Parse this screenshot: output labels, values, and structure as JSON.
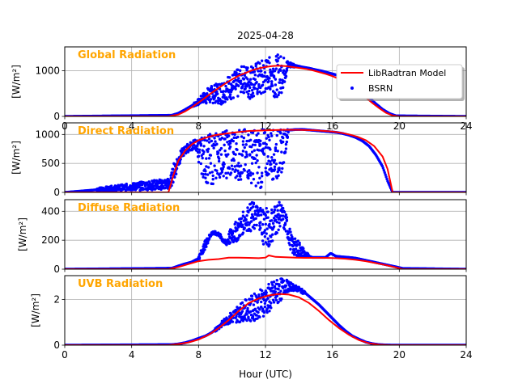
{
  "figure": {
    "title": "2025-04-28",
    "xlabel": "Hour (UTC)",
    "legend": {
      "model_label": "LibRadtran Model",
      "obs_label": "BSRN",
      "placement": "upper-right of first panel"
    },
    "colors": {
      "model": "#ff0000",
      "obs": "#0000ff",
      "panel_label": "#ffa500",
      "grid": "#b0b0b0"
    }
  },
  "chart_data": [
    {
      "type": "line+scatter",
      "panel_label": "Global Radiation",
      "ylabel": "[W/m²]",
      "xlim": [
        0,
        24
      ],
      "ylim": [
        0,
        1520
      ],
      "x_ticks": [
        0,
        4,
        8,
        12,
        16,
        20,
        24
      ],
      "x_tick_labels": [
        "0",
        "4",
        "8",
        "12",
        "16",
        "20",
        "24"
      ],
      "y_ticks": [
        0,
        1000
      ],
      "y_tick_labels": [
        "0",
        "1000"
      ],
      "grid": true,
      "series": [
        {
          "name": "LibRadtran Model",
          "kind": "line",
          "x": [
            0,
            6.2,
            6.8,
            7.2,
            7.6,
            8,
            8.4,
            8.8,
            9.2,
            9.6,
            10,
            10.4,
            10.8,
            11.2,
            11.6,
            12,
            12.4,
            12.8,
            13.2,
            13.6,
            14,
            14.4,
            14.8,
            15.2,
            15.6,
            16,
            16.4,
            16.8,
            17.2,
            17.6,
            18,
            18.4,
            18.8,
            19.2,
            19.6,
            20,
            24
          ],
          "y": [
            0,
            0,
            40,
            110,
            200,
            300,
            410,
            520,
            620,
            720,
            810,
            890,
            950,
            1010,
            1050,
            1080,
            1100,
            1110,
            1100,
            1080,
            1060,
            1040,
            1010,
            970,
            930,
            880,
            820,
            740,
            640,
            530,
            410,
            290,
            180,
            80,
            20,
            0,
            0
          ]
        },
        {
          "name": "BSRN",
          "kind": "scatter",
          "x": [
            0,
            6.4,
            6.8,
            7.2,
            7.6,
            8,
            8.3,
            8.6,
            9,
            9.4,
            9.8,
            10.2,
            10.6,
            11,
            11.4,
            11.8,
            12.2,
            12.6,
            13,
            13.4,
            13.8,
            14.2,
            14.6,
            15,
            15.4,
            15.8,
            16.2,
            16.6,
            17,
            17.4,
            17.8,
            18.2,
            18.6,
            19,
            19.4,
            19.8,
            24
          ],
          "y": [
            0,
            20,
            70,
            150,
            250,
            330,
            400,
            380,
            480,
            650,
            700,
            800,
            820,
            950,
            1000,
            1050,
            1120,
            1150,
            1150,
            1120,
            1100,
            1080,
            1060,
            1020,
            990,
            950,
            910,
            860,
            760,
            650,
            530,
            400,
            270,
            150,
            60,
            10,
            0
          ],
          "y_scatter_low": [
            0,
            20,
            60,
            130,
            200,
            250,
            300,
            250,
            300,
            250,
            400,
            300,
            550,
            350,
            450,
            380,
            600,
            400,
            520,
            1060,
            1080,
            1060,
            1040,
            1010,
            980,
            940,
            900,
            850,
            760,
            650,
            530,
            400,
            270,
            150,
            60,
            10,
            0
          ],
          "y_scatter_high": [
            0,
            30,
            80,
            170,
            270,
            380,
            520,
            650,
            700,
            800,
            900,
            1000,
            1100,
            1150,
            1180,
            1250,
            1300,
            1350,
            1350,
            1200,
            1150,
            1100,
            1070,
            1030,
            1000,
            960,
            920,
            870,
            770,
            660,
            540,
            410,
            280,
            160,
            70,
            15,
            0
          ]
        }
      ]
    },
    {
      "type": "line+scatter",
      "panel_label": "Direct Radiation",
      "ylabel": "[W/m²]",
      "xlim": [
        0,
        24
      ],
      "ylim": [
        0,
        1200
      ],
      "x_ticks": [
        0,
        4,
        8,
        12,
        16,
        20,
        24
      ],
      "x_tick_labels": [
        "",
        "",
        "",
        "",
        "",
        "",
        ""
      ],
      "y_ticks": [
        0,
        500,
        1000
      ],
      "y_tick_labels": [
        "0",
        "500",
        "1000"
      ],
      "grid": true,
      "series": [
        {
          "name": "LibRadtran Model",
          "kind": "line",
          "x": [
            0,
            6.2,
            6.5,
            6.8,
            7.2,
            7.6,
            8,
            8.5,
            9,
            10,
            11,
            12,
            13,
            14,
            15,
            16,
            16.5,
            17,
            17.5,
            18,
            18.5,
            19,
            19.3,
            19.6,
            24
          ],
          "y": [
            0,
            0,
            300,
            550,
            720,
            830,
            900,
            950,
            990,
            1030,
            1060,
            1070,
            1080,
            1080,
            1070,
            1050,
            1030,
            1000,
            960,
            900,
            800,
            620,
            400,
            0,
            0
          ]
        },
        {
          "name": "BSRN",
          "kind": "scatter",
          "x": [
            0,
            6.3,
            6.6,
            7,
            7.4,
            7.8,
            8.2,
            8.6,
            9,
            9.4,
            9.8,
            10.2,
            10.6,
            11,
            11.4,
            11.8,
            12.2,
            12.6,
            13,
            13.4,
            13.8,
            14.2,
            14.6,
            15,
            15.4,
            15.8,
            16.2,
            16.6,
            17,
            17.4,
            17.8,
            18.2,
            18.6,
            19,
            19.3,
            19.6,
            24
          ],
          "y": [
            0,
            200,
            500,
            700,
            800,
            880,
            850,
            600,
            750,
            900,
            1000,
            950,
            1050,
            900,
            1000,
            950,
            800,
            1000,
            1050,
            1080,
            1090,
            1090,
            1080,
            1070,
            1060,
            1050,
            1040,
            1020,
            990,
            950,
            890,
            800,
            650,
            450,
            200,
            0,
            0
          ],
          "y_scatter_low": [
            0,
            50,
            250,
            600,
            700,
            750,
            300,
            100,
            150,
            300,
            200,
            250,
            150,
            200,
            100,
            50,
            300,
            150,
            350,
            1050,
            1070,
            1080,
            1070,
            1060,
            1050,
            1040,
            1030,
            1010,
            980,
            940,
            880,
            790,
            640,
            440,
            190,
            0,
            0
          ],
          "y_scatter_high": [
            0,
            250,
            600,
            750,
            850,
            920,
            950,
            1000,
            1050,
            1080,
            1080,
            1090,
            1100,
            1100,
            1100,
            1100,
            1090,
            1090,
            1090,
            1100,
            1100,
            1095,
            1085,
            1075,
            1065,
            1055,
            1045,
            1025,
            995,
            955,
            895,
            805,
            655,
            455,
            205,
            0,
            0
          ]
        }
      ]
    },
    {
      "type": "line+scatter",
      "panel_label": "Diffuse Radiation",
      "ylabel": "[W/m²]",
      "xlim": [
        0,
        24
      ],
      "ylim": [
        0,
        480
      ],
      "x_ticks": [
        0,
        4,
        8,
        12,
        16,
        20,
        24
      ],
      "x_tick_labels": [
        "",
        "",
        "",
        "",
        "",
        "",
        ""
      ],
      "y_ticks": [
        0,
        200,
        400
      ],
      "y_tick_labels": [
        "0",
        "200",
        "400"
      ],
      "grid": true,
      "series": [
        {
          "name": "LibRadtran Model",
          "kind": "line",
          "x": [
            0,
            6.2,
            6.8,
            7.4,
            8,
            8.6,
            9.2,
            9.8,
            10.4,
            11,
            11.6,
            12,
            12.2,
            12.6,
            13.2,
            13.8,
            14.4,
            15,
            15.6,
            16.2,
            16.8,
            17.4,
            18,
            18.6,
            19.2,
            19.8,
            20.2,
            24
          ],
          "y": [
            0,
            0,
            15,
            35,
            55,
            65,
            70,
            80,
            80,
            78,
            76,
            80,
            95,
            85,
            82,
            80,
            78,
            78,
            78,
            76,
            72,
            65,
            55,
            42,
            28,
            12,
            0,
            0
          ]
        },
        {
          "name": "BSRN",
          "kind": "scatter",
          "x": [
            0,
            6.4,
            6.8,
            7.2,
            7.6,
            8,
            8.4,
            8.8,
            9.2,
            9.6,
            10,
            10.4,
            10.8,
            11.2,
            11.6,
            11.9,
            12.2,
            12.6,
            12.9,
            13.2,
            13.6,
            14,
            14.4,
            14.8,
            15.2,
            15.6,
            15.9,
            16.2,
            16.6,
            17,
            17.4,
            17.8,
            18.2,
            18.6,
            19,
            19.4,
            19.8,
            20.2,
            24
          ],
          "y": [
            0,
            5,
            20,
            35,
            45,
            60,
            150,
            250,
            240,
            170,
            180,
            300,
            280,
            380,
            350,
            420,
            250,
            350,
            380,
            300,
            150,
            180,
            100,
            80,
            80,
            80,
            110,
            90,
            85,
            80,
            75,
            65,
            55,
            45,
            35,
            25,
            15,
            5,
            0
          ],
          "y_scatter_low": [
            0,
            5,
            20,
            35,
            45,
            60,
            140,
            240,
            230,
            160,
            170,
            200,
            270,
            250,
            300,
            150,
            150,
            220,
            300,
            250,
            100,
            80,
            80,
            78,
            78,
            78,
            100,
            85,
            80,
            78,
            72,
            62,
            52,
            42,
            32,
            22,
            12,
            3,
            0
          ],
          "y_scatter_high": [
            0,
            8,
            25,
            40,
            55,
            90,
            200,
            265,
            255,
            200,
            300,
            350,
            420,
            470,
            440,
            460,
            400,
            470,
            460,
            400,
            220,
            200,
            120,
            85,
            85,
            85,
            120,
            95,
            90,
            85,
            80,
            70,
            60,
            50,
            40,
            30,
            20,
            8,
            0
          ]
        }
      ]
    },
    {
      "type": "line+scatter",
      "panel_label": "UVB Radiation",
      "ylabel": "[W/m²]",
      "xlim": [
        0,
        24
      ],
      "ylim": [
        0,
        3.05
      ],
      "x_ticks": [
        0,
        4,
        8,
        12,
        16,
        20,
        24
      ],
      "x_tick_labels": [
        "0",
        "4",
        "8",
        "12",
        "16",
        "20",
        "24"
      ],
      "y_ticks": [
        0,
        2
      ],
      "y_tick_labels": [
        "0",
        "2"
      ],
      "grid": true,
      "series": [
        {
          "name": "LibRadtran Model",
          "kind": "line",
          "x": [
            0,
            6.2,
            6.8,
            7.4,
            8,
            8.6,
            9.2,
            9.8,
            10.4,
            11,
            11.6,
            12.2,
            12.8,
            13.4,
            14,
            14.6,
            15.2,
            15.8,
            16.4,
            17,
            17.6,
            18.2,
            18.8,
            19.4,
            20,
            24
          ],
          "y": [
            0,
            0,
            0.05,
            0.12,
            0.25,
            0.45,
            0.75,
            1.1,
            1.5,
            1.85,
            2.05,
            2.18,
            2.25,
            2.22,
            2.1,
            1.85,
            1.5,
            1.1,
            0.75,
            0.45,
            0.22,
            0.08,
            0.02,
            0,
            0,
            0
          ]
        },
        {
          "name": "BSRN",
          "kind": "scatter",
          "x": [
            0,
            6.4,
            6.8,
            7.2,
            7.6,
            8,
            8.4,
            8.8,
            9.2,
            9.6,
            10,
            10.4,
            10.8,
            11.2,
            11.6,
            12,
            12.4,
            12.8,
            13.2,
            13.6,
            14,
            14.4,
            14.8,
            15.2,
            15.6,
            16,
            16.4,
            16.8,
            17.2,
            17.6,
            18,
            18.4,
            18.8,
            19.2,
            19.6,
            24
          ],
          "y": [
            0,
            0.02,
            0.05,
            0.1,
            0.18,
            0.28,
            0.4,
            0.55,
            0.8,
            1.1,
            1.3,
            1.5,
            1.7,
            1.6,
            2.0,
            2.2,
            2.5,
            2.6,
            2.55,
            2.5,
            2.4,
            2.25,
            2.0,
            1.75,
            1.45,
            1.15,
            0.85,
            0.6,
            0.4,
            0.25,
            0.13,
            0.06,
            0.02,
            0.01,
            0,
            0
          ],
          "y_scatter_low": [
            0,
            0.02,
            0.05,
            0.1,
            0.18,
            0.28,
            0.35,
            0.5,
            0.7,
            0.9,
            0.95,
            1.0,
            1.1,
            1.0,
            1.2,
            1.3,
            1.5,
            1.8,
            2.3,
            2.4,
            2.35,
            2.2,
            1.95,
            1.7,
            1.4,
            1.1,
            0.8,
            0.55,
            0.35,
            0.22,
            0.11,
            0.05,
            0.02,
            0.01,
            0,
            0
          ],
          "y_scatter_high": [
            0,
            0.03,
            0.06,
            0.12,
            0.2,
            0.32,
            0.45,
            0.62,
            0.9,
            1.2,
            1.5,
            1.8,
            2.0,
            2.2,
            2.4,
            2.6,
            2.8,
            2.95,
            2.9,
            2.7,
            2.55,
            2.35,
            2.1,
            1.85,
            1.55,
            1.25,
            0.95,
            0.68,
            0.45,
            0.3,
            0.16,
            0.08,
            0.03,
            0.01,
            0,
            0
          ]
        }
      ]
    }
  ]
}
